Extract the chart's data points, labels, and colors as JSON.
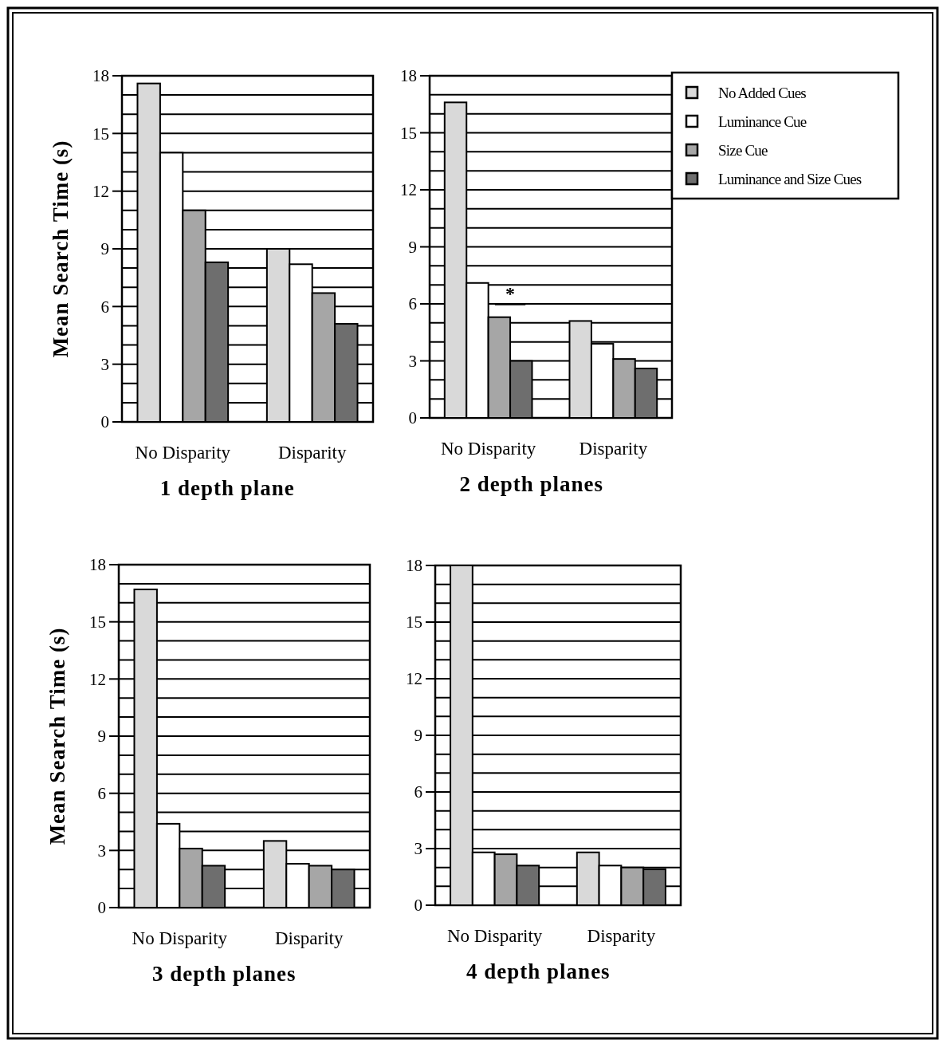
{
  "chart_data": [
    {
      "type": "bar",
      "title": "1 depth plane",
      "ylabel": "Mean Search Time (s)",
      "categories": [
        "No Disparity",
        "Disparity"
      ],
      "ylim": [
        0,
        18
      ],
      "yticks": [
        0,
        {
          "value": 1,
          "label": null
        },
        {
          "value": 2,
          "label": null
        },
        3,
        {
          "value": 4,
          "label": null
        },
        {
          "value": 5,
          "label": null
        },
        6,
        {
          "value": 7,
          "label": null
        },
        {
          "value": 8,
          "label": null
        },
        9,
        {
          "value": 10,
          "label": null
        },
        {
          "value": 11,
          "label": null
        },
        12,
        {
          "value": 13,
          "label": null
        },
        {
          "value": 14,
          "label": null
        },
        15,
        {
          "value": 16,
          "label": null
        },
        {
          "value": 17,
          "label": null
        },
        18
      ],
      "grid": "y",
      "legend": false,
      "series": [
        {
          "color": "#d9d9d9",
          "values": [
            17.6,
            9.0
          ]
        },
        {
          "color": "#ffffff",
          "values": [
            14.0,
            8.2
          ]
        },
        {
          "color": "#a6a6a6",
          "values": [
            11.0,
            6.7
          ]
        },
        {
          "color": "#6e6e6e",
          "values": [
            8.3,
            5.1
          ]
        }
      ]
    },
    {
      "type": "bar",
      "title": "2 depth planes",
      "categories": [
        "No Disparity",
        "Disparity"
      ],
      "ylim": [
        0,
        18
      ],
      "yticks": [
        0,
        {
          "value": 1,
          "label": null
        },
        {
          "value": 2,
          "label": null
        },
        3,
        {
          "value": 4,
          "label": null
        },
        {
          "value": 5,
          "label": null
        },
        6,
        {
          "value": 7,
          "label": null
        },
        {
          "value": 8,
          "label": null
        },
        9,
        {
          "value": 10,
          "label": null
        },
        {
          "value": 11,
          "label": null
        },
        12,
        {
          "value": 13,
          "label": null
        },
        {
          "value": 14,
          "label": null
        },
        15,
        {
          "value": 16,
          "label": null
        },
        {
          "value": 17,
          "label": null
        },
        18
      ],
      "grid": "y",
      "legend": "top right",
      "annotations": [
        "*"
      ],
      "series": [
        {
          "name": "No Added Cues",
          "color": "#d9d9d9",
          "values": [
            16.6,
            5.1
          ]
        },
        {
          "name": "Luminance Cue",
          "color": "#ffffff",
          "values": [
            7.1,
            3.9
          ]
        },
        {
          "name": "Size Cue",
          "color": "#a6a6a6",
          "values": [
            5.3,
            3.1
          ]
        },
        {
          "name": "Luminance and Size Cues",
          "color": "#6e6e6e",
          "values": [
            3.0,
            2.6
          ]
        }
      ]
    },
    {
      "type": "bar",
      "title": "3 depth planes",
      "ylabel": "Mean Search Time (s)",
      "categories": [
        "No Disparity",
        "Disparity"
      ],
      "ylim": [
        0,
        18
      ],
      "yticks": [
        0,
        {
          "value": 1,
          "label": null
        },
        {
          "value": 2,
          "label": null
        },
        3,
        {
          "value": 4,
          "label": null
        },
        {
          "value": 5,
          "label": null
        },
        6,
        {
          "value": 7,
          "label": null
        },
        {
          "value": 8,
          "label": null
        },
        9,
        {
          "value": 10,
          "label": null
        },
        {
          "value": 11,
          "label": null
        },
        12,
        {
          "value": 13,
          "label": null
        },
        {
          "value": 14,
          "label": null
        },
        15,
        {
          "value": 16,
          "label": null
        },
        {
          "value": 17,
          "label": null
        },
        18
      ],
      "grid": "y",
      "legend": false,
      "series": [
        {
          "color": "#d9d9d9",
          "values": [
            16.7,
            3.5
          ]
        },
        {
          "color": "#ffffff",
          "values": [
            4.4,
            2.3
          ]
        },
        {
          "color": "#a6a6a6",
          "values": [
            3.1,
            2.2
          ]
        },
        {
          "color": "#6e6e6e",
          "values": [
            2.2,
            2.0
          ]
        }
      ]
    },
    {
      "type": "bar",
      "title": "4 depth planes",
      "categories": [
        "No Disparity",
        "Disparity"
      ],
      "ylim": [
        0,
        18
      ],
      "yticks": [
        0,
        {
          "value": 1,
          "label": null
        },
        {
          "value": 2,
          "label": null
        },
        3,
        {
          "value": 4,
          "label": null
        },
        {
          "value": 5,
          "label": null
        },
        6,
        {
          "value": 7,
          "label": null
        },
        {
          "value": 8,
          "label": null
        },
        9,
        {
          "value": 10,
          "label": null
        },
        {
          "value": 11,
          "label": null
        },
        12,
        {
          "value": 13,
          "label": null
        },
        {
          "value": 14,
          "label": null
        },
        15,
        {
          "value": 16,
          "label": null
        },
        {
          "value": 17,
          "label": null
        },
        18
      ],
      "grid": "y",
      "legend": false,
      "series": [
        {
          "color": "#d9d9d9",
          "values": [
            18.0,
            2.8
          ]
        },
        {
          "color": "#ffffff",
          "values": [
            2.8,
            2.1
          ]
        },
        {
          "color": "#a6a6a6",
          "values": [
            2.7,
            2.0
          ]
        },
        {
          "color": "#6e6e6e",
          "values": [
            2.1,
            1.9
          ]
        }
      ]
    }
  ]
}
